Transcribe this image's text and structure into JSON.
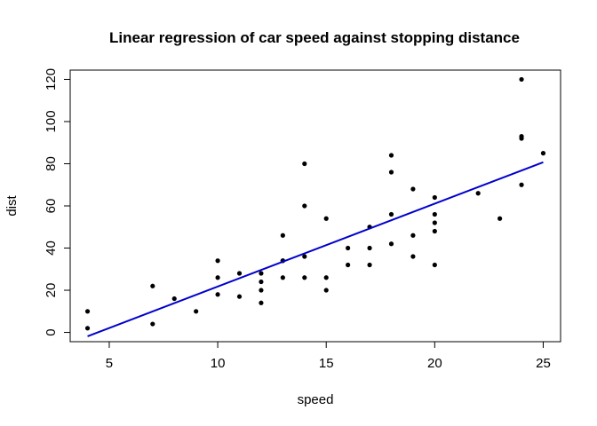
{
  "chart_data": {
    "type": "scatter",
    "title": "Linear regression of car speed against stopping distance",
    "xlabel": "speed",
    "ylabel": "dist",
    "xlim": [
      3.2,
      25.8
    ],
    "ylim": [
      -4.4,
      124.4
    ],
    "xticks": [
      5,
      10,
      15,
      20,
      25
    ],
    "yticks": [
      0,
      20,
      40,
      60,
      80,
      100,
      120
    ],
    "grid": false,
    "point_color": "#000000",
    "fit_color": "#0000cd",
    "points": [
      [
        4,
        2
      ],
      [
        4,
        10
      ],
      [
        7,
        4
      ],
      [
        7,
        22
      ],
      [
        8,
        16
      ],
      [
        9,
        10
      ],
      [
        10,
        18
      ],
      [
        10,
        26
      ],
      [
        10,
        34
      ],
      [
        11,
        17
      ],
      [
        11,
        28
      ],
      [
        12,
        14
      ],
      [
        12,
        20
      ],
      [
        12,
        24
      ],
      [
        12,
        28
      ],
      [
        13,
        26
      ],
      [
        13,
        34
      ],
      [
        13,
        34
      ],
      [
        13,
        46
      ],
      [
        14,
        26
      ],
      [
        14,
        36
      ],
      [
        14,
        60
      ],
      [
        14,
        80
      ],
      [
        15,
        20
      ],
      [
        15,
        26
      ],
      [
        15,
        54
      ],
      [
        16,
        32
      ],
      [
        16,
        40
      ],
      [
        17,
        32
      ],
      [
        17,
        40
      ],
      [
        17,
        50
      ],
      [
        18,
        42
      ],
      [
        18,
        56
      ],
      [
        18,
        76
      ],
      [
        18,
        84
      ],
      [
        19,
        36
      ],
      [
        19,
        46
      ],
      [
        19,
        68
      ],
      [
        20,
        32
      ],
      [
        20,
        48
      ],
      [
        20,
        52
      ],
      [
        20,
        56
      ],
      [
        20,
        64
      ],
      [
        22,
        66
      ],
      [
        23,
        54
      ],
      [
        24,
        70
      ],
      [
        24,
        92
      ],
      [
        24,
        93
      ],
      [
        24,
        120
      ],
      [
        25,
        85
      ]
    ],
    "regression": {
      "intercept": -17.579,
      "slope": 3.932,
      "x_from": 4,
      "x_to": 25
    }
  }
}
